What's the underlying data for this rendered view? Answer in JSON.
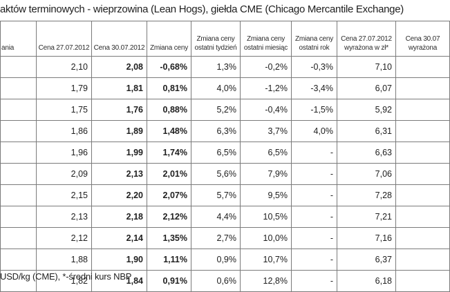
{
  "title": "aktów terminowych - wieprzowina (Lean Hogs), giełda CME (Chicago Mercantile Exchange)",
  "columns": [
    [
      "ania"
    ],
    [
      "Cena 27.07.2012"
    ],
    [
      "Cena 30.07.2012"
    ],
    [
      "Zmiana ceny"
    ],
    [
      "Zmiana ceny",
      "ostatni tydzień"
    ],
    [
      "Zmiana ceny",
      "ostatni miesiąc"
    ],
    [
      "Zmiana ceny",
      "ostatni rok"
    ],
    [
      "Cena 27.07.2012",
      "wyrażona w zł*"
    ],
    [
      "Cena 30.07",
      "wyrażona"
    ]
  ],
  "rows": [
    [
      "",
      "2,10",
      "2,08",
      "-0,68%",
      "1,3%",
      "-0,2%",
      "-0,3%",
      "7,10",
      ""
    ],
    [
      "",
      "1,79",
      "1,81",
      "0,81%",
      "4,0%",
      "-1,2%",
      "-3,4%",
      "6,07",
      ""
    ],
    [
      "",
      "1,75",
      "1,76",
      "0,88%",
      "5,2%",
      "-0,4%",
      "-1,5%",
      "5,92",
      ""
    ],
    [
      "",
      "1,86",
      "1,89",
      "1,48%",
      "6,3%",
      "3,7%",
      "4,0%",
      "6,31",
      ""
    ],
    [
      "",
      "1,96",
      "1,99",
      "1,74%",
      "6,5%",
      "6,5%",
      "-",
      "6,63",
      ""
    ],
    [
      "",
      "2,09",
      "2,13",
      "2,01%",
      "5,6%",
      "7,9%",
      "-",
      "7,06",
      ""
    ],
    [
      "",
      "2,15",
      "2,20",
      "2,07%",
      "5,7%",
      "9,5%",
      "-",
      "7,28",
      ""
    ],
    [
      "",
      "2,13",
      "2,18",
      "2,12%",
      "4,4%",
      "10,5%",
      "-",
      "7,21",
      ""
    ],
    [
      "",
      "2,12",
      "2,14",
      "1,35%",
      "2,7%",
      "10,0%",
      "-",
      "7,16",
      ""
    ],
    [
      "",
      "1,88",
      "1,90",
      "1,11%",
      "0,9%",
      "10,7%",
      "-",
      "6,37",
      ""
    ],
    [
      "",
      "1,82",
      "1,84",
      "0,91%",
      "0,6%",
      "12,8%",
      "-",
      "6,18",
      ""
    ]
  ],
  "footnote": "USD/kg (CME), *-średni kurs NBP"
}
